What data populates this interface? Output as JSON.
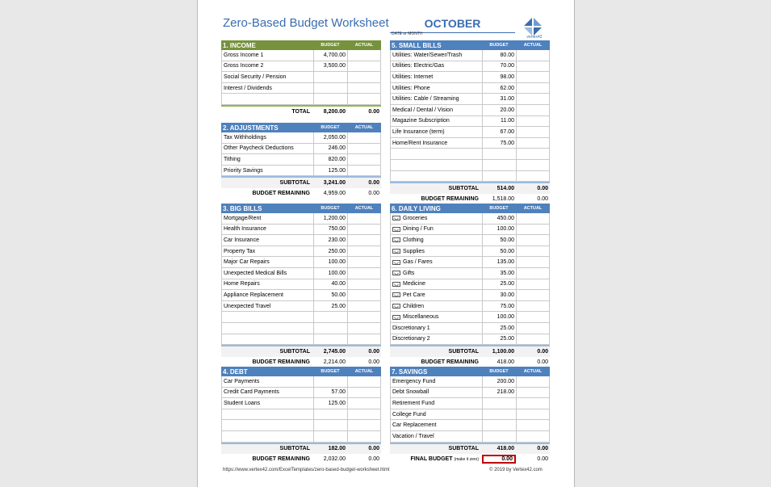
{
  "title": "Zero-Based Budget Worksheet",
  "month": "OCTOBER",
  "date_label": "DATE or MONTH",
  "logo_text": "vertex42",
  "col_budget": "BUDGET",
  "col_actual": "ACTUAL",
  "colors": {
    "income": "#76923c",
    "blue": "#4f81bd",
    "final_border": "#c00000"
  },
  "income": {
    "title": "1. INCOME",
    "rows": [
      [
        "Gross Income 1",
        "4,700.00",
        ""
      ],
      [
        "Gross Income 2",
        "3,500.00",
        ""
      ],
      [
        "Social Security / Pension",
        "",
        ""
      ],
      [
        "Interest / Dividends",
        "",
        ""
      ],
      [
        "",
        "",
        ""
      ]
    ],
    "total_label": "TOTAL",
    "total_budget": "8,200.00",
    "total_actual": "0.00"
  },
  "adjustments": {
    "title": "2. ADJUSTMENTS",
    "rows": [
      [
        "Tax Withholdings",
        "2,050.00",
        ""
      ],
      [
        "Other Paycheck Deductions",
        "246.00",
        ""
      ],
      [
        "Tithing",
        "820.00",
        ""
      ],
      [
        "Priority Savings",
        "125.00",
        ""
      ]
    ],
    "subtotal_label": "SUBTOTAL",
    "subtotal_budget": "3,241.00",
    "subtotal_actual": "0.00",
    "remaining_label": "BUDGET REMAINING",
    "remaining_budget": "4,959.00",
    "remaining_actual": "0.00"
  },
  "big_bills": {
    "title": "3. BIG BILLS",
    "rows": [
      [
        "Mortgage/Rent",
        "1,200.00",
        ""
      ],
      [
        "Health Insurance",
        "750.00",
        ""
      ],
      [
        "Car Insurance",
        "230.00",
        ""
      ],
      [
        "Property Tax",
        "250.00",
        ""
      ],
      [
        "Major Car Repairs",
        "100.00",
        ""
      ],
      [
        "Unexpected Medical Bills",
        "100.00",
        ""
      ],
      [
        "Home Repairs",
        "40.00",
        ""
      ],
      [
        "Appliance Replacement",
        "50.00",
        ""
      ],
      [
        "Unexpected Travel",
        "25.00",
        ""
      ],
      [
        "",
        "",
        ""
      ],
      [
        "",
        "",
        ""
      ],
      [
        "",
        "",
        ""
      ]
    ],
    "subtotal_label": "SUBTOTAL",
    "subtotal_budget": "2,745.00",
    "subtotal_actual": "0.00",
    "remaining_label": "BUDGET REMAINING",
    "remaining_budget": "2,214.00",
    "remaining_actual": "0.00"
  },
  "debt": {
    "title": "4. DEBT",
    "rows": [
      [
        "Car Payments",
        "",
        ""
      ],
      [
        "Credit Card Payments",
        "57.00",
        ""
      ],
      [
        "Student Loans",
        "125.00",
        ""
      ],
      [
        "",
        "",
        ""
      ],
      [
        "",
        "",
        ""
      ],
      [
        "",
        "",
        ""
      ]
    ],
    "subtotal_label": "SUBTOTAL",
    "subtotal_budget": "182.00",
    "subtotal_actual": "0.00",
    "remaining_label": "BUDGET REMAINING",
    "remaining_budget": "2,032.00",
    "remaining_actual": "0.00"
  },
  "small_bills": {
    "title": "5. SMALL BILLS",
    "rows": [
      [
        "Utilities: Water/Sewer/Trash",
        "80.00",
        ""
      ],
      [
        "Utilities: Electric/Gas",
        "70.00",
        ""
      ],
      [
        "Utilities: Internet",
        "98.00",
        ""
      ],
      [
        "Utilities: Phone",
        "62.00",
        ""
      ],
      [
        "Utilities: Cable / Streaming",
        "31.00",
        ""
      ],
      [
        "Medical / Dental / Vision",
        "20.00",
        ""
      ],
      [
        "Magazine Subscription",
        "11.00",
        ""
      ],
      [
        "Life Insurance (term)",
        "67.00",
        ""
      ],
      [
        "Home/Rent Insurance",
        "75.00",
        ""
      ],
      [
        "",
        "",
        ""
      ],
      [
        "",
        "",
        ""
      ],
      [
        "",
        "",
        ""
      ]
    ],
    "subtotal_label": "SUBTOTAL",
    "subtotal_budget": "514.00",
    "subtotal_actual": "0.00",
    "remaining_label": "BUDGET REMAINING",
    "remaining_budget": "1,518.00",
    "remaining_actual": "0.00"
  },
  "daily_living": {
    "title": "6. DAILY LIVING",
    "rows": [
      [
        "Groceries",
        "450.00",
        "",
        true
      ],
      [
        "Dining / Fun",
        "100.00",
        "",
        true
      ],
      [
        "Clothing",
        "50.00",
        "",
        true
      ],
      [
        "Supplies",
        "50.00",
        "",
        true
      ],
      [
        "Gas / Fares",
        "135.00",
        "",
        true
      ],
      [
        "Gifts",
        "35.00",
        "",
        true
      ],
      [
        "Medicine",
        "25.00",
        "",
        true
      ],
      [
        "Pet Care",
        "30.00",
        "",
        true
      ],
      [
        "Children",
        "75.00",
        "",
        true
      ],
      [
        "Miscellaneous",
        "100.00",
        "",
        true
      ],
      [
        "Discretionary 1",
        "25.00",
        "",
        false
      ],
      [
        "Discretionary 2",
        "25.00",
        "",
        false
      ]
    ],
    "subtotal_label": "SUBTOTAL",
    "subtotal_budget": "1,100.00",
    "subtotal_actual": "0.00",
    "remaining_label": "BUDGET REMAINING",
    "remaining_budget": "418.00",
    "remaining_actual": "0.00"
  },
  "savings": {
    "title": "7. SAVINGS",
    "rows": [
      [
        "Emergency Fund",
        "200.00",
        ""
      ],
      [
        "Debt Snowball",
        "218.00",
        ""
      ],
      [
        "Retirement Fund",
        "",
        ""
      ],
      [
        "College Fund",
        "",
        ""
      ],
      [
        "Car Replacement",
        "",
        ""
      ],
      [
        "Vacation / Travel",
        "",
        ""
      ]
    ],
    "subtotal_label": "SUBTOTAL",
    "subtotal_budget": "418.00",
    "subtotal_actual": "0.00",
    "final_label": "FINAL BUDGET",
    "final_note": "(make it zero)",
    "final_budget": "0.00",
    "final_actual": "0.00"
  },
  "footer_url": "https://www.vertex42.com/ExcelTemplates/zero-based-budget-worksheet.html",
  "footer_copy": "© 2019 by Vertex42.com"
}
